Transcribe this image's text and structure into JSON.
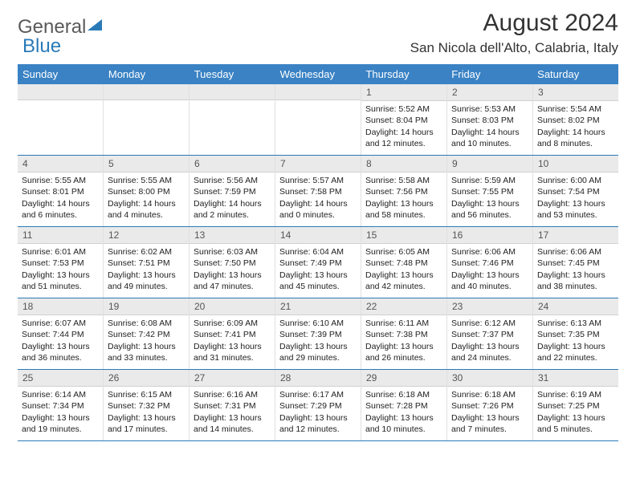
{
  "logo": {
    "general": "General",
    "blue": "Blue"
  },
  "title": "August 2024",
  "location": "San Nicola dell'Alto, Calabria, Italy",
  "colors": {
    "header_bg": "#3a82c4",
    "header_text": "#ffffff",
    "daynum_bg": "#eaeaea",
    "border": "#2a7ab8",
    "logo_blue": "#2a7ab8",
    "logo_gray": "#5a5a5a"
  },
  "weekdays": [
    "Sunday",
    "Monday",
    "Tuesday",
    "Wednesday",
    "Thursday",
    "Friday",
    "Saturday"
  ],
  "calendar": {
    "first_weekday_index": 4,
    "days": [
      {
        "n": 1,
        "sunrise": "5:52 AM",
        "sunset": "8:04 PM",
        "daylight": "14 hours and 12 minutes."
      },
      {
        "n": 2,
        "sunrise": "5:53 AM",
        "sunset": "8:03 PM",
        "daylight": "14 hours and 10 minutes."
      },
      {
        "n": 3,
        "sunrise": "5:54 AM",
        "sunset": "8:02 PM",
        "daylight": "14 hours and 8 minutes."
      },
      {
        "n": 4,
        "sunrise": "5:55 AM",
        "sunset": "8:01 PM",
        "daylight": "14 hours and 6 minutes."
      },
      {
        "n": 5,
        "sunrise": "5:55 AM",
        "sunset": "8:00 PM",
        "daylight": "14 hours and 4 minutes."
      },
      {
        "n": 6,
        "sunrise": "5:56 AM",
        "sunset": "7:59 PM",
        "daylight": "14 hours and 2 minutes."
      },
      {
        "n": 7,
        "sunrise": "5:57 AM",
        "sunset": "7:58 PM",
        "daylight": "14 hours and 0 minutes."
      },
      {
        "n": 8,
        "sunrise": "5:58 AM",
        "sunset": "7:56 PM",
        "daylight": "13 hours and 58 minutes."
      },
      {
        "n": 9,
        "sunrise": "5:59 AM",
        "sunset": "7:55 PM",
        "daylight": "13 hours and 56 minutes."
      },
      {
        "n": 10,
        "sunrise": "6:00 AM",
        "sunset": "7:54 PM",
        "daylight": "13 hours and 53 minutes."
      },
      {
        "n": 11,
        "sunrise": "6:01 AM",
        "sunset": "7:53 PM",
        "daylight": "13 hours and 51 minutes."
      },
      {
        "n": 12,
        "sunrise": "6:02 AM",
        "sunset": "7:51 PM",
        "daylight": "13 hours and 49 minutes."
      },
      {
        "n": 13,
        "sunrise": "6:03 AM",
        "sunset": "7:50 PM",
        "daylight": "13 hours and 47 minutes."
      },
      {
        "n": 14,
        "sunrise": "6:04 AM",
        "sunset": "7:49 PM",
        "daylight": "13 hours and 45 minutes."
      },
      {
        "n": 15,
        "sunrise": "6:05 AM",
        "sunset": "7:48 PM",
        "daylight": "13 hours and 42 minutes."
      },
      {
        "n": 16,
        "sunrise": "6:06 AM",
        "sunset": "7:46 PM",
        "daylight": "13 hours and 40 minutes."
      },
      {
        "n": 17,
        "sunrise": "6:06 AM",
        "sunset": "7:45 PM",
        "daylight": "13 hours and 38 minutes."
      },
      {
        "n": 18,
        "sunrise": "6:07 AM",
        "sunset": "7:44 PM",
        "daylight": "13 hours and 36 minutes."
      },
      {
        "n": 19,
        "sunrise": "6:08 AM",
        "sunset": "7:42 PM",
        "daylight": "13 hours and 33 minutes."
      },
      {
        "n": 20,
        "sunrise": "6:09 AM",
        "sunset": "7:41 PM",
        "daylight": "13 hours and 31 minutes."
      },
      {
        "n": 21,
        "sunrise": "6:10 AM",
        "sunset": "7:39 PM",
        "daylight": "13 hours and 29 minutes."
      },
      {
        "n": 22,
        "sunrise": "6:11 AM",
        "sunset": "7:38 PM",
        "daylight": "13 hours and 26 minutes."
      },
      {
        "n": 23,
        "sunrise": "6:12 AM",
        "sunset": "7:37 PM",
        "daylight": "13 hours and 24 minutes."
      },
      {
        "n": 24,
        "sunrise": "6:13 AM",
        "sunset": "7:35 PM",
        "daylight": "13 hours and 22 minutes."
      },
      {
        "n": 25,
        "sunrise": "6:14 AM",
        "sunset": "7:34 PM",
        "daylight": "13 hours and 19 minutes."
      },
      {
        "n": 26,
        "sunrise": "6:15 AM",
        "sunset": "7:32 PM",
        "daylight": "13 hours and 17 minutes."
      },
      {
        "n": 27,
        "sunrise": "6:16 AM",
        "sunset": "7:31 PM",
        "daylight": "13 hours and 14 minutes."
      },
      {
        "n": 28,
        "sunrise": "6:17 AM",
        "sunset": "7:29 PM",
        "daylight": "13 hours and 12 minutes."
      },
      {
        "n": 29,
        "sunrise": "6:18 AM",
        "sunset": "7:28 PM",
        "daylight": "13 hours and 10 minutes."
      },
      {
        "n": 30,
        "sunrise": "6:18 AM",
        "sunset": "7:26 PM",
        "daylight": "13 hours and 7 minutes."
      },
      {
        "n": 31,
        "sunrise": "6:19 AM",
        "sunset": "7:25 PM",
        "daylight": "13 hours and 5 minutes."
      }
    ]
  },
  "labels": {
    "sunrise_prefix": "Sunrise: ",
    "sunset_prefix": "Sunset: ",
    "daylight_prefix": "Daylight: "
  }
}
